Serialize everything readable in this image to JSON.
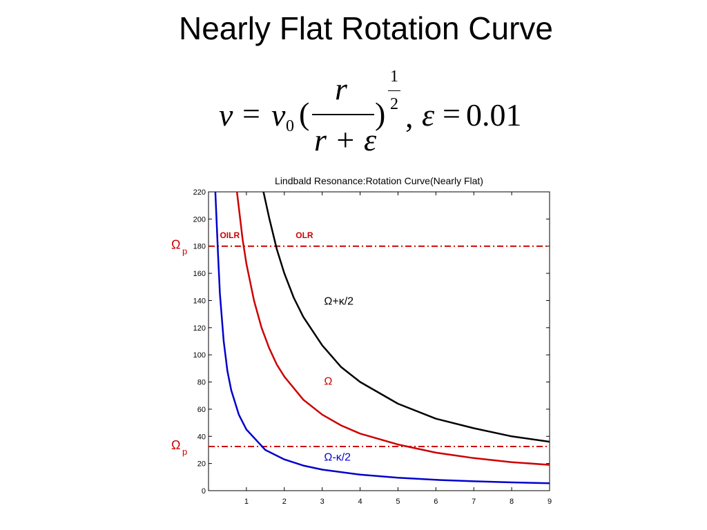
{
  "slide": {
    "title": "Nearly Flat Rotation Curve"
  },
  "formula": {
    "v": "v",
    "equals1": "=",
    "v0_base": "v",
    "v0_sub": "0",
    "open_paren": "(",
    "numerator": "r",
    "denominator": "r + ε",
    "close_paren": ")",
    "exp_num": "1",
    "exp_den": "2",
    "comma": ",",
    "epsilon": "ε",
    "equals2": "=",
    "eps_value": "0.01"
  },
  "chart_data": {
    "type": "line",
    "title": "Lindbald Resonance:Rotation Curve(Nearly Flat)",
    "xlabel": "",
    "ylabel": "",
    "xlim": [
      0,
      9
    ],
    "ylim": [
      0,
      220
    ],
    "xticks": [
      1,
      2,
      3,
      4,
      5,
      6,
      7,
      8,
      9
    ],
    "yticks": [
      0,
      20,
      40,
      60,
      80,
      100,
      120,
      140,
      160,
      180,
      200,
      220
    ],
    "grid": false,
    "series": [
      {
        "name": "Ω+κ/2",
        "color": "#000000",
        "x": [
          1.45,
          1.6,
          1.8,
          2.0,
          2.25,
          2.5,
          3.0,
          3.5,
          4.0,
          5.0,
          6.0,
          7.0,
          8.0,
          9.0
        ],
        "y": [
          220,
          201,
          178,
          160,
          142,
          128,
          107,
          91,
          80,
          64,
          53,
          46,
          40,
          36
        ]
      },
      {
        "name": "Ω",
        "color": "#cc0000",
        "x": [
          0.75,
          0.9,
          1.0,
          1.2,
          1.4,
          1.6,
          1.8,
          2.0,
          2.5,
          3.0,
          3.5,
          4.0,
          5.0,
          6.0,
          7.0,
          8.0,
          9.0
        ],
        "y": [
          220,
          185,
          167,
          140,
          120,
          105,
          93,
          84,
          67,
          56,
          48,
          42,
          34,
          28,
          24,
          21,
          19
        ]
      },
      {
        "name": "Ω-κ/2",
        "color": "#0000cc",
        "x": [
          0.18,
          0.25,
          0.3,
          0.4,
          0.5,
          0.6,
          0.8,
          1.0,
          1.5,
          2.0,
          2.5,
          3.0,
          4.0,
          5.0,
          6.0,
          7.0,
          8.0,
          9.0
        ],
        "y": [
          220,
          175,
          145,
          110,
          88,
          74,
          56,
          45,
          30,
          23,
          18.5,
          15.5,
          11.8,
          9.5,
          8.0,
          6.9,
          6.1,
          5.5
        ]
      }
    ],
    "hlines": [
      {
        "label": "Ω",
        "label_sub": "p",
        "y": 180,
        "color": "#cc0000"
      },
      {
        "label": "Ω",
        "label_sub": "p",
        "y": 32.5,
        "color": "#cc0000"
      }
    ],
    "annotations": [
      {
        "text": "OILR",
        "x": 0.3,
        "y": 186,
        "color": "#cc0000"
      },
      {
        "text": "OLR",
        "x": 2.3,
        "y": 186,
        "color": "#cc0000"
      },
      {
        "text": "Ω+κ/2",
        "x": 3.05,
        "y": 137,
        "color": "#000000"
      },
      {
        "text": "Ω",
        "x": 3.05,
        "y": 78,
        "color": "#cc0000"
      },
      {
        "text": "Ω-κ/2",
        "x": 3.05,
        "y": 22,
        "color": "#0000cc"
      }
    ]
  }
}
